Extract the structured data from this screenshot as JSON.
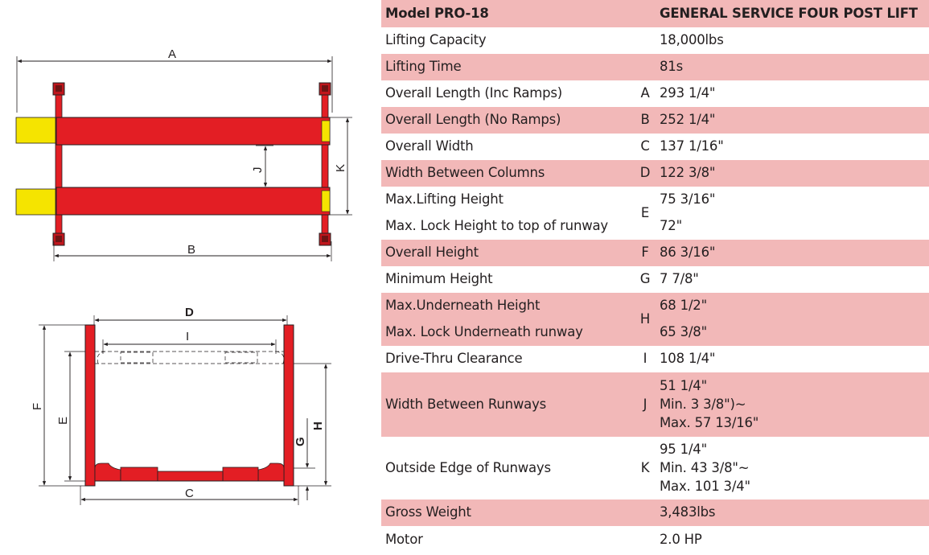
{
  "header": {
    "model": "Model PRO-18",
    "product": "GENERAL SERVICE FOUR POST LIFT"
  },
  "rows": [
    {
      "label": "Lifting Capacity",
      "letter": "",
      "value": "18,000lbs"
    },
    {
      "label": "Lifting Time",
      "letter": "",
      "value": "81s"
    },
    {
      "label": "Overall Length (Inc Ramps)",
      "letter": "A",
      "value": "293 1/4\""
    },
    {
      "label": "Overall Length (No Ramps)",
      "letter": "B",
      "value": "252 1/4\""
    },
    {
      "label": "Overall Width",
      "letter": "C",
      "value": "137 1/16\""
    },
    {
      "label": "Width Between Columns",
      "letter": "D",
      "value": "122 3/8\""
    }
  ],
  "lift_height": {
    "letter": "E",
    "labels": [
      "Max.Lifting Height",
      "Max. Lock Height to top of runway"
    ],
    "values": [
      "75 3/16\"",
      "72\""
    ]
  },
  "rows2": [
    {
      "label": "Overall Height",
      "letter": "F",
      "value": "86 3/16\""
    },
    {
      "label": "Minimum Height",
      "letter": "G",
      "value": "7 7/8\""
    }
  ],
  "underneath": {
    "letter": "H",
    "labels": [
      "Max.Underneath Height",
      "Max. Lock Underneath runway"
    ],
    "values": [
      "68 1/2\"",
      "65 3/8\""
    ]
  },
  "drive_thru": {
    "label": "Drive-Thru  Clearance",
    "letter": "I",
    "value": "108 1/4\""
  },
  "runway_width": {
    "label": "Width Between Runways",
    "letter": "J",
    "values": [
      "51 1/4\"",
      "Min. 3 3/8\")~",
      "Max. 57 13/16\""
    ]
  },
  "outside_edge": {
    "label": "Outside  Edge of Runways",
    "letter": "K",
    "values": [
      "95 1/4\"",
      "Min. 43 3/8\"~",
      "Max. 101 3/4\""
    ]
  },
  "rows3": [
    {
      "label": "Gross Weight",
      "letter": "",
      "value": "3,483lbs"
    },
    {
      "label": "Motor",
      "letter": "",
      "value": "2.0 HP"
    }
  ],
  "diagram_letters": {
    "a": "A",
    "b": "B",
    "j": "J",
    "k": "K",
    "d": "D",
    "i": "I",
    "c": "C",
    "e": "E",
    "f": "F",
    "g": "G",
    "h": "H"
  },
  "colors": {
    "shade": "#f2b8b8",
    "lift_red": "#e31e24",
    "ramp_yellow": "#f5e400",
    "column_dark": "#6d1414"
  }
}
